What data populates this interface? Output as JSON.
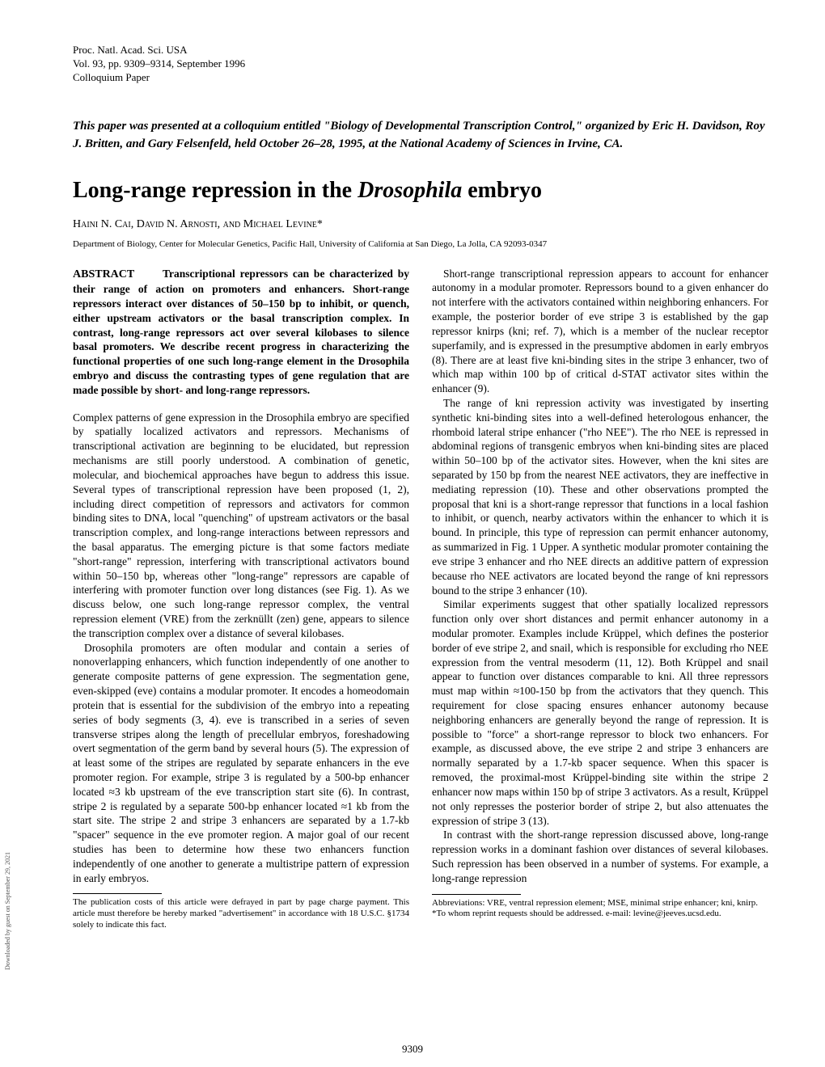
{
  "header": {
    "journal": "Proc. Natl. Acad. Sci. USA",
    "volume": "Vol. 93, pp. 9309–9314, September 1996",
    "category": "Colloquium Paper"
  },
  "colloquium_note": "This paper was presented at a colloquium entitled \"Biology of Developmental Transcription Control,\" organized by Eric H. Davidson, Roy J. Britten, and Gary Felsenfeld, held October 26–28, 1995, at the National Academy of Sciences in Irvine, CA.",
  "title_pre": "Long-range repression in the ",
  "title_italic": "Drosophila",
  "title_post": " embryo",
  "authors": "Haini N. Cai, David N. Arnosti, and Michael Levine*",
  "affiliation": "Department of Biology, Center for Molecular Genetics, Pacific Hall, University of California at San Diego, La Jolla, CA 92093-0347",
  "abstract_label": "ABSTRACT",
  "abstract_body": "Transcriptional repressors can be characterized by their range of action on promoters and enhancers. Short-range repressors interact over distances of 50–150 bp to inhibit, or quench, either upstream activators or the basal transcription complex. In contrast, long-range repressors act over several kilobases to silence basal promoters. We describe recent progress in characterizing the functional properties of one such long-range element in the Drosophila embryo and discuss the contrasting types of gene regulation that are made possible by short- and long-range repressors.",
  "left": {
    "p1": "Complex patterns of gene expression in the Drosophila embryo are specified by spatially localized activators and repressors. Mechanisms of transcriptional activation are beginning to be elucidated, but repression mechanisms are still poorly understood. A combination of genetic, molecular, and biochemical approaches have begun to address this issue. Several types of transcriptional repression have been proposed (1, 2), including direct competition of repressors and activators for common binding sites to DNA, local \"quenching\" of upstream activators or the basal transcription complex, and long-range interactions between repressors and the basal apparatus. The emerging picture is that some factors mediate \"short-range\" repression, interfering with transcriptional activators bound within 50–150 bp, whereas other \"long-range\" repressors are capable of interfering with promoter function over long distances (see Fig. 1). As we discuss below, one such long-range repressor complex, the ventral repression element (VRE) from the zerknüllt (zen) gene, appears to silence the transcription complex over a distance of several kilobases.",
    "p2": "Drosophila promoters are often modular and contain a series of nonoverlapping enhancers, which function independently of one another to generate composite patterns of gene expression. The segmentation gene, even-skipped (eve) contains a modular promoter. It encodes a homeodomain protein that is essential for the subdivision of the embryo into a repeating series of body segments (3, 4). eve is transcribed in a series of seven transverse stripes along the length of precellular embryos, foreshadowing overt segmentation of the germ band by several hours (5). The expression of at least some of the stripes are regulated by separate enhancers in the eve promoter region. For example, stripe 3 is regulated by a 500-bp enhancer located ≈3 kb upstream of the eve transcription start site (6). In contrast, stripe 2 is regulated by a separate 500-bp enhancer located ≈1 kb from the start site. The stripe 2 and stripe 3 enhancers are separated by a 1.7-kb \"spacer\" sequence in the eve promoter region. A major goal of our recent studies has been to determine how these two enhancers function independently of one another to generate a multistripe pattern of expression in early embryos."
  },
  "right": {
    "p1": "Short-range transcriptional repression appears to account for enhancer autonomy in a modular promoter. Repressors bound to a given enhancer do not interfere with the activators contained within neighboring enhancers. For example, the posterior border of eve stripe 3 is established by the gap repressor knirps (kni; ref. 7), which is a member of the nuclear receptor superfamily, and is expressed in the presumptive abdomen in early embryos (8). There are at least five kni-binding sites in the stripe 3 enhancer, two of which map within 100 bp of critical d-STAT activator sites within the enhancer (9).",
    "p2": "The range of kni repression activity was investigated by inserting synthetic kni-binding sites into a well-defined heterologous enhancer, the rhomboid lateral stripe enhancer (\"rho NEE\"). The rho NEE is repressed in abdominal regions of transgenic embryos when kni-binding sites are placed within 50–100 bp of the activator sites. However, when the kni sites are separated by 150 bp from the nearest NEE activators, they are ineffective in mediating repression (10). These and other observations prompted the proposal that kni is a short-range repressor that functions in a local fashion to inhibit, or quench, nearby activators within the enhancer to which it is bound. In principle, this type of repression can permit enhancer autonomy, as summarized in Fig. 1 Upper. A synthetic modular promoter containing the eve stripe 3 enhancer and rho NEE directs an additive pattern of expression because rho NEE activators are located beyond the range of kni repressors bound to the stripe 3 enhancer (10).",
    "p3": "Similar experiments suggest that other spatially localized repressors function only over short distances and permit enhancer autonomy in a modular promoter. Examples include Krüppel, which defines the posterior border of eve stripe 2, and snail, which is responsible for excluding rho NEE expression from the ventral mesoderm (11, 12). Both Krüppel and snail appear to function over distances comparable to kni. All three repressors must map within ≈100-150 bp from the activators that they quench. This requirement for close spacing ensures enhancer autonomy because neighboring enhancers are generally beyond the range of repression. It is possible to \"force\" a short-range repressor to block two enhancers. For example, as discussed above, the eve stripe 2 and stripe 3 enhancers are normally separated by a 1.7-kb spacer sequence. When this spacer is removed, the proximal-most Krüppel-binding site within the stripe 2 enhancer now maps within 150 bp of stripe 3 activators. As a result, Krüppel not only represses the posterior border of stripe 2, but also attenuates the expression of stripe 3 (13).",
    "p4": "In contrast with the short-range repression discussed above, long-range repression works in a dominant fashion over distances of several kilobases. Such repression has been observed in a number of systems. For example, a long-range repression"
  },
  "footnote_left": "The publication costs of this article were defrayed in part by page charge payment. This article must therefore be hereby marked \"advertisement\" in accordance with 18 U.S.C. §1734 solely to indicate this fact.",
  "footnote_right_1": "Abbreviations: VRE, ventral repression element; MSE, minimal stripe enhancer; kni, knirp.",
  "footnote_right_2": "*To whom reprint requests should be addressed. e-mail: levine@jeeves.ucsd.edu.",
  "page_number": "9309",
  "side_text": "Downloaded by guest on September 29, 2021"
}
